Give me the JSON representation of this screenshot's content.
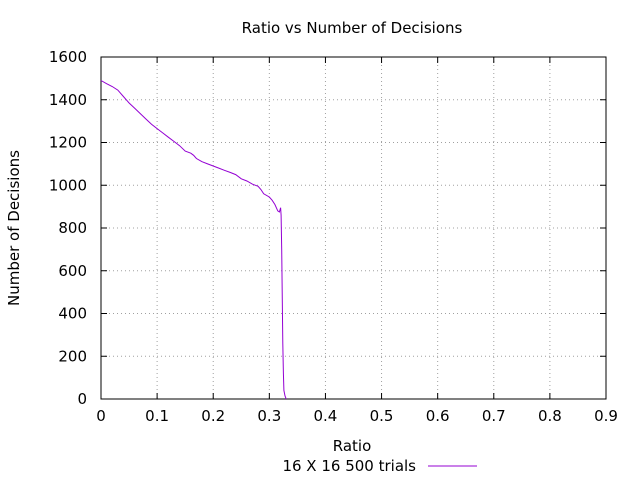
{
  "chart_data": {
    "type": "line",
    "title": "Ratio vs Number of Decisions",
    "xlabel": "Ratio",
    "ylabel": "Number of Decisions",
    "xlim": [
      0,
      0.9
    ],
    "ylim": [
      0,
      1600
    ],
    "xticks": [
      "0",
      "0.1",
      "0.2",
      "0.3",
      "0.4",
      "0.5",
      "0.6",
      "0.7",
      "0.8",
      "0.9"
    ],
    "yticks": [
      "0",
      "200",
      "400",
      "600",
      "800",
      "1000",
      "1200",
      "1400",
      "1600"
    ],
    "grid": true,
    "legend_position": "bottom-center",
    "series": [
      {
        "name": "16 X 16 500 trials",
        "color": "#9400d3",
        "points": [
          [
            0.0,
            1490
          ],
          [
            0.01,
            1475
          ],
          [
            0.02,
            1462
          ],
          [
            0.03,
            1445
          ],
          [
            0.04,
            1415
          ],
          [
            0.05,
            1385
          ],
          [
            0.06,
            1360
          ],
          [
            0.07,
            1335
          ],
          [
            0.08,
            1310
          ],
          [
            0.09,
            1285
          ],
          [
            0.1,
            1265
          ],
          [
            0.11,
            1245
          ],
          [
            0.12,
            1225
          ],
          [
            0.13,
            1205
          ],
          [
            0.14,
            1185
          ],
          [
            0.15,
            1160
          ],
          [
            0.16,
            1150
          ],
          [
            0.165,
            1140
          ],
          [
            0.17,
            1125
          ],
          [
            0.18,
            1110
          ],
          [
            0.19,
            1100
          ],
          [
            0.2,
            1090
          ],
          [
            0.21,
            1080
          ],
          [
            0.22,
            1070
          ],
          [
            0.23,
            1060
          ],
          [
            0.24,
            1050
          ],
          [
            0.25,
            1030
          ],
          [
            0.26,
            1020
          ],
          [
            0.27,
            1005
          ],
          [
            0.28,
            995
          ],
          [
            0.285,
            980
          ],
          [
            0.29,
            960
          ],
          [
            0.3,
            945
          ],
          [
            0.305,
            930
          ],
          [
            0.31,
            910
          ],
          [
            0.315,
            880
          ],
          [
            0.318,
            875
          ],
          [
            0.32,
            895
          ],
          [
            0.321,
            860
          ],
          [
            0.322,
            700
          ],
          [
            0.323,
            500
          ],
          [
            0.324,
            260
          ],
          [
            0.325,
            120
          ],
          [
            0.326,
            40
          ],
          [
            0.328,
            15
          ],
          [
            0.33,
            0
          ]
        ]
      }
    ]
  }
}
